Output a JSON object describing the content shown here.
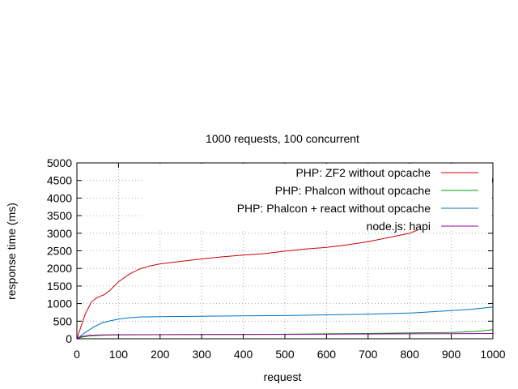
{
  "chart_data": {
    "type": "line",
    "title": "1000 requests, 100 concurrent",
    "xlabel": "request",
    "ylabel": "response time (ms)",
    "xlim": [
      0,
      1000
    ],
    "ylim": [
      0,
      5000
    ],
    "x_ticks": [
      0,
      100,
      200,
      300,
      400,
      500,
      600,
      700,
      800,
      900,
      1000
    ],
    "y_ticks": [
      0,
      500,
      1000,
      1500,
      2000,
      2500,
      3000,
      3500,
      4000,
      4500,
      5000
    ],
    "grid": true,
    "legend_position": "top-right",
    "series": [
      {
        "name": "PHP: ZF2 without opcache",
        "color": "#cc0000",
        "points": [
          [
            0,
            0
          ],
          [
            20,
            700
          ],
          [
            35,
            1050
          ],
          [
            50,
            1180
          ],
          [
            65,
            1250
          ],
          [
            80,
            1380
          ],
          [
            100,
            1620
          ],
          [
            125,
            1830
          ],
          [
            150,
            1980
          ],
          [
            175,
            2070
          ],
          [
            200,
            2130
          ],
          [
            250,
            2200
          ],
          [
            300,
            2270
          ],
          [
            350,
            2330
          ],
          [
            400,
            2380
          ],
          [
            450,
            2420
          ],
          [
            500,
            2490
          ],
          [
            550,
            2550
          ],
          [
            600,
            2600
          ],
          [
            650,
            2670
          ],
          [
            700,
            2760
          ],
          [
            750,
            2880
          ],
          [
            800,
            3000
          ],
          [
            820,
            3100
          ],
          [
            850,
            3180
          ],
          [
            880,
            3280
          ],
          [
            900,
            3350
          ],
          [
            930,
            3450
          ],
          [
            960,
            3580
          ],
          [
            985,
            3750
          ],
          [
            992,
            4100
          ],
          [
            997,
            4400
          ],
          [
            1000,
            4600
          ]
        ]
      },
      {
        "name": "PHP: Phalcon without opcache",
        "color": "#00a000",
        "points": [
          [
            0,
            0
          ],
          [
            10,
            40
          ],
          [
            30,
            80
          ],
          [
            60,
            100
          ],
          [
            100,
            110
          ],
          [
            200,
            115
          ],
          [
            300,
            120
          ],
          [
            400,
            125
          ],
          [
            500,
            130
          ],
          [
            600,
            140
          ],
          [
            700,
            150
          ],
          [
            800,
            165
          ],
          [
            900,
            180
          ],
          [
            950,
            200
          ],
          [
            980,
            230
          ],
          [
            1000,
            260
          ]
        ]
      },
      {
        "name": "PHP: Phalcon + react without opcache",
        "color": "#0070c0",
        "points": [
          [
            0,
            0
          ],
          [
            20,
            180
          ],
          [
            40,
            330
          ],
          [
            60,
            450
          ],
          [
            80,
            510
          ],
          [
            100,
            560
          ],
          [
            120,
            590
          ],
          [
            150,
            620
          ],
          [
            200,
            630
          ],
          [
            300,
            640
          ],
          [
            400,
            650
          ],
          [
            500,
            660
          ],
          [
            600,
            680
          ],
          [
            700,
            700
          ],
          [
            800,
            730
          ],
          [
            900,
            800
          ],
          [
            950,
            840
          ],
          [
            1000,
            900
          ]
        ]
      },
      {
        "name": "node.js: hapi",
        "color": "#a000a0",
        "points": [
          [
            0,
            0
          ],
          [
            10,
            60
          ],
          [
            30,
            100
          ],
          [
            60,
            110
          ],
          [
            100,
            115
          ],
          [
            200,
            118
          ],
          [
            300,
            120
          ],
          [
            400,
            122
          ],
          [
            500,
            125
          ],
          [
            600,
            130
          ],
          [
            700,
            135
          ],
          [
            800,
            140
          ],
          [
            900,
            145
          ],
          [
            1000,
            150
          ]
        ]
      }
    ]
  }
}
